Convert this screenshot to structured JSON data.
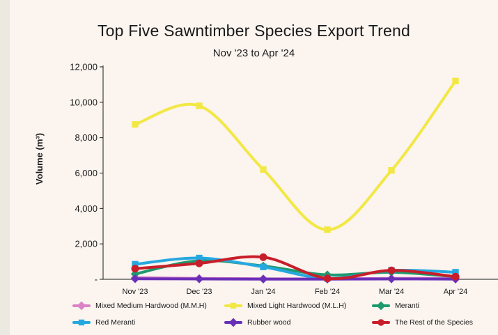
{
  "chart_data": {
    "type": "line",
    "title": "Top Five Sawntimber Species Export Trend",
    "subtitle": "Nov '23 to Apr '24",
    "ylabel": "Volume (m³)",
    "xlabel": "",
    "categories": [
      "Nov '23",
      "Dec '23",
      "Jan '24",
      "Feb '24",
      "Mar '24",
      "Apr '24"
    ],
    "ylim": [
      0,
      12000
    ],
    "yticks": [
      "12,000",
      "10,000",
      "8,000",
      "6,000",
      "4,000",
      "2,000",
      "-"
    ],
    "grid": false,
    "legend_position": "bottom",
    "series": [
      {
        "name": "Mixed Medium Hardwood (M.M.H)",
        "color": "#dc83c8",
        "marker": "diamond",
        "values": [
          100,
          50,
          30,
          20,
          50,
          50
        ]
      },
      {
        "name": "Mixed Light Hardwood (M.L.H)",
        "color": "#f2e845",
        "marker": "square",
        "values": [
          8750,
          9800,
          6200,
          2800,
          6150,
          11200
        ]
      },
      {
        "name": "Meranti",
        "color": "#1e9a6e",
        "marker": "diamond",
        "values": [
          300,
          1050,
          750,
          250,
          400,
          150
        ]
      },
      {
        "name": "Red Meranti",
        "color": "#25a8e0",
        "marker": "square",
        "values": [
          850,
          1200,
          700,
          50,
          500,
          400
        ]
      },
      {
        "name": "Rubber wood",
        "color": "#6a2fb8",
        "marker": "diamond",
        "values": [
          30,
          20,
          10,
          10,
          20,
          10
        ]
      },
      {
        "name": "The Rest of the Species",
        "color": "#c81e2a",
        "marker": "circle",
        "values": [
          600,
          900,
          1250,
          50,
          500,
          150
        ]
      }
    ]
  }
}
